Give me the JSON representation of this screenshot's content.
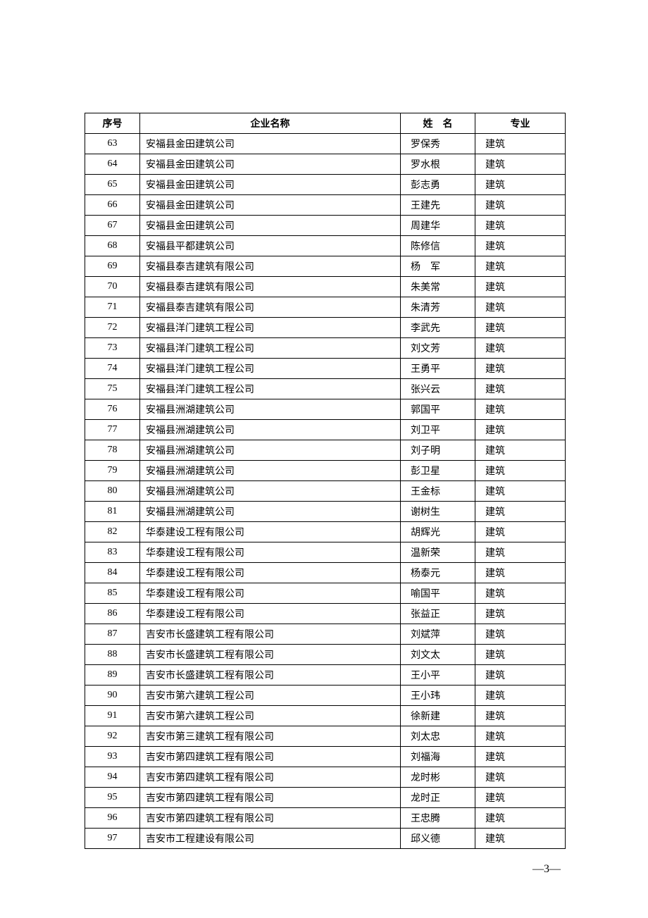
{
  "headers": {
    "seq": "序号",
    "company": "企业名称",
    "name": "姓　名",
    "major": "专业"
  },
  "rows": [
    {
      "seq": "63",
      "company": "安福县金田建筑公司",
      "name": "罗保秀",
      "major": "建筑"
    },
    {
      "seq": "64",
      "company": "安福县金田建筑公司",
      "name": "罗水根",
      "major": "建筑"
    },
    {
      "seq": "65",
      "company": "安福县金田建筑公司",
      "name": "彭志勇",
      "major": "建筑"
    },
    {
      "seq": "66",
      "company": "安福县金田建筑公司",
      "name": "王建先",
      "major": "建筑"
    },
    {
      "seq": "67",
      "company": "安福县金田建筑公司",
      "name": "周建华",
      "major": "建筑"
    },
    {
      "seq": "68",
      "company": "安福县平都建筑公司",
      "name": "陈修信",
      "major": "建筑"
    },
    {
      "seq": "69",
      "company": "安福县泰吉建筑有限公司",
      "name": "杨　军",
      "major": "建筑"
    },
    {
      "seq": "70",
      "company": "安福县泰吉建筑有限公司",
      "name": "朱美常",
      "major": "建筑"
    },
    {
      "seq": "71",
      "company": "安福县泰吉建筑有限公司",
      "name": "朱清芳",
      "major": "建筑"
    },
    {
      "seq": "72",
      "company": "安福县洋门建筑工程公司",
      "name": "李武先",
      "major": "建筑"
    },
    {
      "seq": "73",
      "company": "安福县洋门建筑工程公司",
      "name": "刘文芳",
      "major": "建筑"
    },
    {
      "seq": "74",
      "company": "安福县洋门建筑工程公司",
      "name": "王勇平",
      "major": "建筑"
    },
    {
      "seq": "75",
      "company": "安福县洋门建筑工程公司",
      "name": "张兴云",
      "major": "建筑"
    },
    {
      "seq": "76",
      "company": "安福县洲湖建筑公司",
      "name": "郭国平",
      "major": "建筑"
    },
    {
      "seq": "77",
      "company": "安福县洲湖建筑公司",
      "name": "刘卫平",
      "major": "建筑"
    },
    {
      "seq": "78",
      "company": "安福县洲湖建筑公司",
      "name": "刘子明",
      "major": "建筑"
    },
    {
      "seq": "79",
      "company": "安福县洲湖建筑公司",
      "name": "彭卫星",
      "major": "建筑"
    },
    {
      "seq": "80",
      "company": "安福县洲湖建筑公司",
      "name": "王金标",
      "major": "建筑"
    },
    {
      "seq": "81",
      "company": "安福县洲湖建筑公司",
      "name": "谢树生",
      "major": "建筑"
    },
    {
      "seq": "82",
      "company": "华泰建设工程有限公司",
      "name": "胡辉光",
      "major": "建筑"
    },
    {
      "seq": "83",
      "company": "华泰建设工程有限公司",
      "name": "温新荣",
      "major": "建筑"
    },
    {
      "seq": "84",
      "company": "华泰建设工程有限公司",
      "name": "杨泰元",
      "major": "建筑"
    },
    {
      "seq": "85",
      "company": "华泰建设工程有限公司",
      "name": "喻国平",
      "major": "建筑"
    },
    {
      "seq": "86",
      "company": "华泰建设工程有限公司",
      "name": "张益正",
      "major": "建筑"
    },
    {
      "seq": "87",
      "company": "吉安市长盛建筑工程有限公司",
      "name": "刘斌萍",
      "major": "建筑"
    },
    {
      "seq": "88",
      "company": "吉安市长盛建筑工程有限公司",
      "name": "刘文太",
      "major": "建筑"
    },
    {
      "seq": "89",
      "company": "吉安市长盛建筑工程有限公司",
      "name": "王小平",
      "major": "建筑"
    },
    {
      "seq": "90",
      "company": "吉安市第六建筑工程公司",
      "name": "王小玮",
      "major": "建筑"
    },
    {
      "seq": "91",
      "company": "吉安市第六建筑工程公司",
      "name": "徐新建",
      "major": "建筑"
    },
    {
      "seq": "92",
      "company": "吉安市第三建筑工程有限公司",
      "name": "刘太忠",
      "major": "建筑"
    },
    {
      "seq": "93",
      "company": "吉安市第四建筑工程有限公司",
      "name": "刘福海",
      "major": "建筑"
    },
    {
      "seq": "94",
      "company": "吉安市第四建筑工程有限公司",
      "name": "龙时彬",
      "major": "建筑"
    },
    {
      "seq": "95",
      "company": "吉安市第四建筑工程有限公司",
      "name": "龙时正",
      "major": "建筑"
    },
    {
      "seq": "96",
      "company": "吉安市第四建筑工程有限公司",
      "name": "王忠腾",
      "major": "建筑"
    },
    {
      "seq": "97",
      "company": "吉安市工程建设有限公司",
      "name": "邱义德",
      "major": "建筑"
    }
  ],
  "page_number": "—3—"
}
